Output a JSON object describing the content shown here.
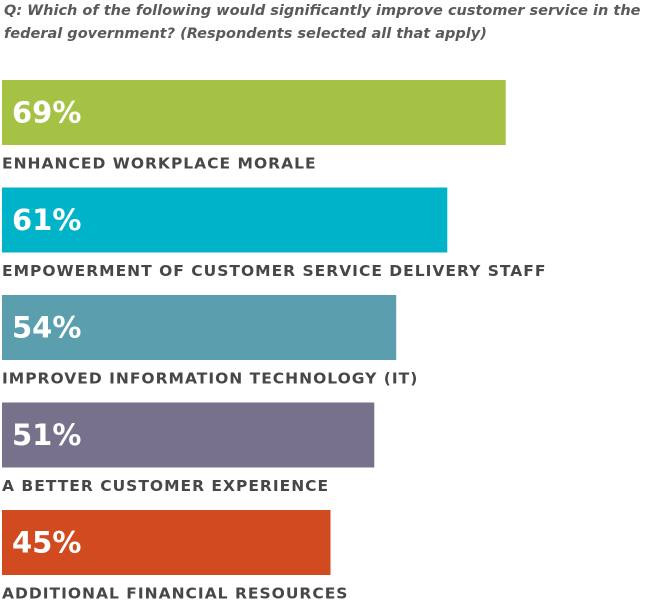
{
  "chart_data": {
    "type": "bar",
    "orientation": "horizontal",
    "title": "Q: Which of the following would significantly improve customer service in the federal government? (Respondents selected all that apply)",
    "categories": [
      "ENHANCED WORKPLACE MORALE",
      "EMPOWERMENT OF CUSTOMER SERVICE DELIVERY STAFF",
      "IMPROVED INFORMATION TECHNOLOGY (IT)",
      "A BETTER CUSTOMER EXPERIENCE",
      "ADDITIONAL FINANCIAL RESOURCES"
    ],
    "values": [
      69,
      61,
      54,
      51,
      45
    ],
    "value_labels": [
      "69%",
      "61%",
      "54%",
      "51%",
      "45%"
    ],
    "colors": [
      "#a5c244",
      "#00b3c9",
      "#5b9eae",
      "#77718b",
      "#d24a20"
    ]
  }
}
